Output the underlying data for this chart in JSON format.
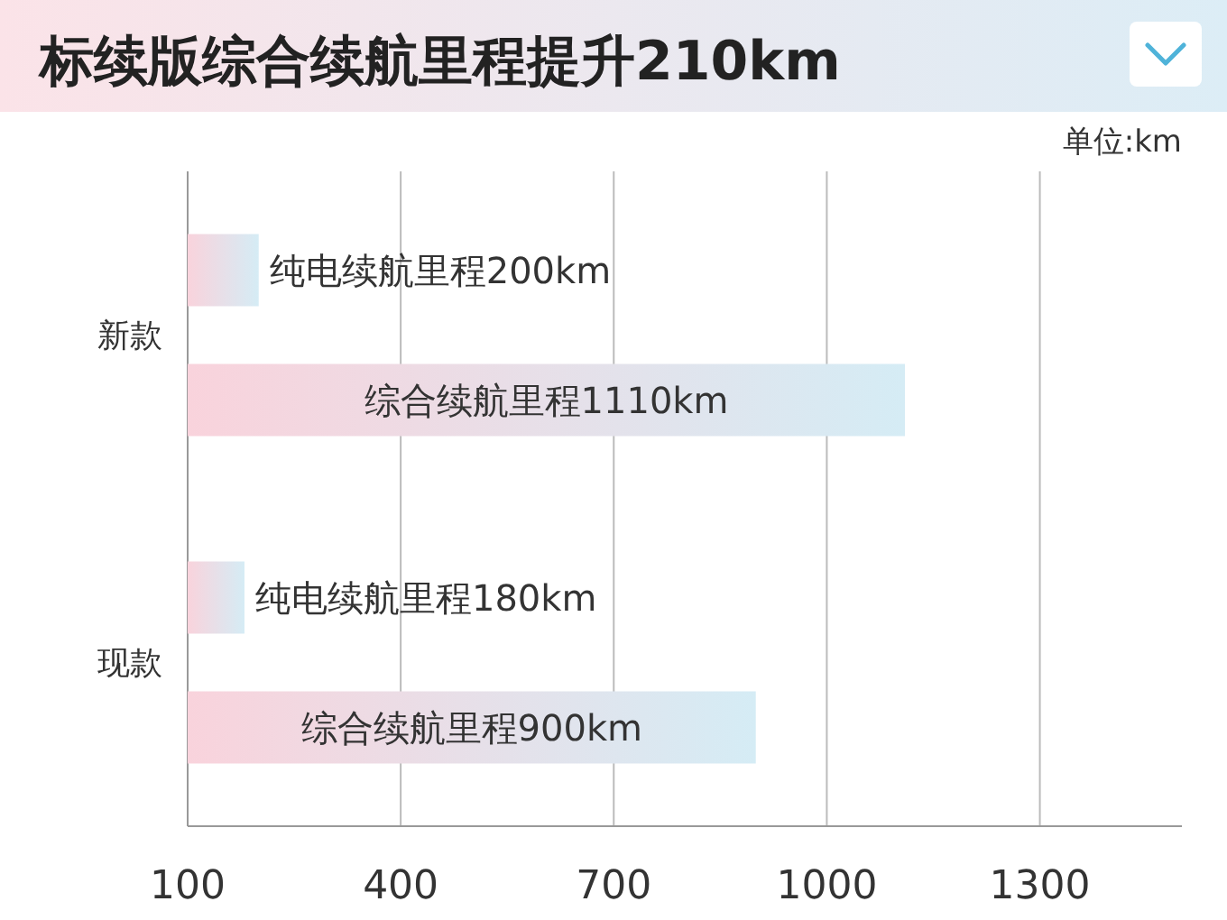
{
  "chart_data": {
    "type": "bar",
    "orientation": "horizontal",
    "title": "标续版综合续航里程提升210km",
    "annotations": [
      "单位:km"
    ],
    "categories": [
      "新款",
      "现款"
    ],
    "series": [
      {
        "color": "#f9d3dc",
        "values": [
          200,
          180
        ],
        "value_labels": [
          "纯电续航里程200km",
          "纯电续航里程180km"
        ]
      },
      {
        "color": "#f9d3dc",
        "values": [
          1110,
          900
        ],
        "value_labels": [
          "综合续航里程1110km",
          "综合续航里程900km"
        ]
      }
    ],
    "xlim": [
      100,
      1500
    ],
    "xticks": [
      100,
      400,
      700,
      1000,
      1300
    ],
    "grid": "x"
  }
}
